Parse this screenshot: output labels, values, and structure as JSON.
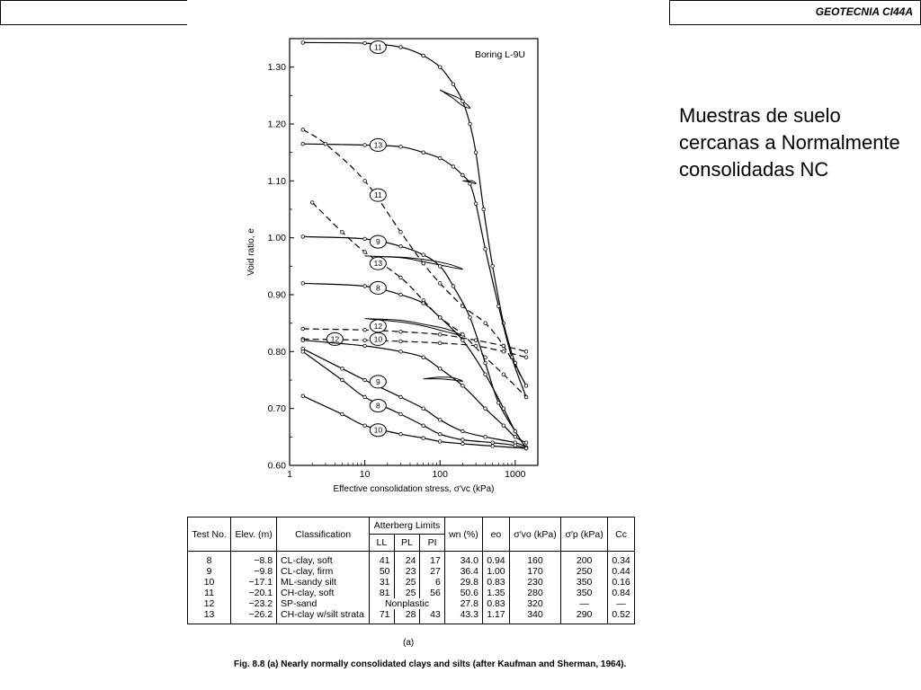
{
  "header": {
    "title": "GEOTECNIA CI44A"
  },
  "side_caption": "Muestras de suelo cercanas a Normalmente consolidadas NC",
  "chart_data": {
    "type": "line",
    "annotation": "Boring L-9U",
    "ylabel": "Void ratio, e",
    "xlabel": "Effective consolidation stress, σ′vc (kPa)",
    "x_scale": "log",
    "xlim": [
      1,
      2000
    ],
    "ylim": [
      0.6,
      1.35
    ],
    "x_ticks": [
      "1",
      "10",
      "100",
      "1000"
    ],
    "y_ticks": [
      "0.60",
      "0.70",
      "0.80",
      "0.90",
      "1.00",
      "1.10",
      "1.20",
      "1.30"
    ],
    "series": [
      {
        "label": "11",
        "style": "solid",
        "label_at": [
          15,
          1.335
        ],
        "points": [
          [
            1.5,
            1.343
          ],
          [
            10,
            1.342
          ],
          [
            30,
            1.335
          ],
          [
            60,
            1.32
          ],
          [
            100,
            1.3
          ],
          [
            150,
            1.27
          ],
          [
            200,
            1.24
          ],
          [
            250,
            1.2
          ],
          [
            300,
            1.15
          ],
          [
            380,
            1.05
          ],
          [
            500,
            0.95
          ],
          [
            700,
            0.85
          ],
          [
            1000,
            0.78
          ],
          [
            1400,
            0.74
          ]
        ]
      },
      {
        "label": "13",
        "style": "solid",
        "label_at": [
          15,
          1.163
        ],
        "points": [
          [
            1.5,
            1.165
          ],
          [
            10,
            1.163
          ],
          [
            30,
            1.16
          ],
          [
            60,
            1.15
          ],
          [
            100,
            1.14
          ],
          [
            150,
            1.125
          ],
          [
            200,
            1.11
          ],
          [
            250,
            1.095
          ],
          [
            300,
            1.06
          ],
          [
            400,
            0.98
          ],
          [
            600,
            0.88
          ],
          [
            900,
            0.79
          ],
          [
            1400,
            0.72
          ]
        ]
      },
      {
        "label": "11",
        "style": "dashed",
        "label_at": [
          15,
          1.075
        ],
        "points": [
          [
            1.5,
            1.19
          ],
          [
            3,
            1.165
          ],
          [
            10,
            1.1
          ],
          [
            30,
            1.01
          ],
          [
            60,
            0.955
          ],
          [
            100,
            0.92
          ],
          [
            200,
            0.88
          ],
          [
            400,
            0.85
          ],
          [
            700,
            0.81
          ],
          [
            1400,
            0.74
          ]
        ]
      },
      {
        "label": "13",
        "style": "dashed",
        "label_at": [
          15,
          0.955
        ],
        "points": [
          [
            2,
            1.062
          ],
          [
            5,
            1.01
          ],
          [
            10,
            0.975
          ],
          [
            30,
            0.93
          ],
          [
            60,
            0.89
          ],
          [
            100,
            0.86
          ],
          [
            200,
            0.83
          ],
          [
            400,
            0.79
          ],
          [
            700,
            0.76
          ],
          [
            1400,
            0.72
          ]
        ]
      },
      {
        "label": "9",
        "style": "solid",
        "label_at": [
          15,
          0.993
        ],
        "points": [
          [
            1.5,
            1.002
          ],
          [
            10,
            0.998
          ],
          [
            30,
            0.985
          ],
          [
            60,
            0.97
          ],
          [
            100,
            0.95
          ],
          [
            150,
            0.915
          ],
          [
            250,
            0.86
          ],
          [
            400,
            0.78
          ],
          [
            600,
            0.71
          ],
          [
            1000,
            0.66
          ],
          [
            1400,
            0.63
          ]
        ]
      },
      {
        "label": "8",
        "style": "solid",
        "label_at": [
          15,
          0.912
        ],
        "points": [
          [
            1.5,
            0.92
          ],
          [
            10,
            0.915
          ],
          [
            30,
            0.9
          ],
          [
            60,
            0.885
          ],
          [
            100,
            0.86
          ],
          [
            200,
            0.82
          ],
          [
            400,
            0.76
          ],
          [
            700,
            0.7
          ],
          [
            1000,
            0.66
          ],
          [
            1400,
            0.63
          ]
        ]
      },
      {
        "label": "12",
        "style": "dashed",
        "label_at": [
          15,
          0.845
        ],
        "points": [
          [
            1.5,
            0.84
          ],
          [
            10,
            0.838
          ],
          [
            30,
            0.835
          ],
          [
            100,
            0.83
          ],
          [
            300,
            0.82
          ],
          [
            700,
            0.81
          ],
          [
            1400,
            0.8
          ]
        ]
      },
      {
        "label": "12",
        "style": "dashed",
        "label_at": [
          4,
          0.822
        ],
        "points": [
          [
            1.5,
            0.822
          ],
          [
            10,
            0.82
          ],
          [
            30,
            0.818
          ],
          [
            100,
            0.815
          ],
          [
            300,
            0.81
          ],
          [
            700,
            0.8
          ],
          [
            1400,
            0.79
          ]
        ]
      },
      {
        "label": "10",
        "style": "solid",
        "label_at": [
          15,
          0.822
        ],
        "points": [
          [
            1.5,
            0.82
          ],
          [
            10,
            0.81
          ],
          [
            30,
            0.8
          ],
          [
            60,
            0.79
          ],
          [
            100,
            0.77
          ],
          [
            200,
            0.74
          ],
          [
            400,
            0.7
          ],
          [
            700,
            0.67
          ],
          [
            1000,
            0.65
          ],
          [
            1400,
            0.64
          ]
        ]
      },
      {
        "label": "9",
        "style": "solid",
        "label_at": [
          15,
          0.747
        ],
        "points": [
          [
            1.5,
            0.805
          ],
          [
            5,
            0.77
          ],
          [
            10,
            0.75
          ],
          [
            30,
            0.72
          ],
          [
            60,
            0.7
          ],
          [
            100,
            0.68
          ],
          [
            200,
            0.66
          ],
          [
            400,
            0.65
          ],
          [
            1000,
            0.64
          ],
          [
            1400,
            0.632
          ]
        ]
      },
      {
        "label": "8",
        "style": "solid",
        "label_at": [
          15,
          0.705
        ],
        "points": [
          [
            1.5,
            0.8
          ],
          [
            5,
            0.75
          ],
          [
            10,
            0.72
          ],
          [
            30,
            0.69
          ],
          [
            60,
            0.67
          ],
          [
            100,
            0.655
          ],
          [
            200,
            0.645
          ],
          [
            500,
            0.64
          ],
          [
            1000,
            0.635
          ],
          [
            1400,
            0.63
          ]
        ]
      },
      {
        "label": "10",
        "style": "solid",
        "label_at": [
          15,
          0.662
        ],
        "points": [
          [
            1.5,
            0.722
          ],
          [
            5,
            0.69
          ],
          [
            10,
            0.67
          ],
          [
            30,
            0.655
          ],
          [
            60,
            0.648
          ],
          [
            100,
            0.642
          ],
          [
            200,
            0.638
          ],
          [
            500,
            0.634
          ],
          [
            1400,
            0.63
          ]
        ]
      }
    ],
    "loops": [
      {
        "points": [
          [
            100,
            1.26
          ],
          [
            150,
            1.245
          ],
          [
            200,
            1.232
          ],
          [
            250,
            1.228
          ],
          [
            220,
            1.236
          ],
          [
            180,
            1.245
          ],
          [
            120,
            1.255
          ],
          [
            100,
            1.26
          ]
        ]
      },
      {
        "points": [
          [
            200,
            1.1
          ],
          [
            250,
            1.098
          ],
          [
            300,
            1.095
          ],
          [
            270,
            1.1
          ],
          [
            200,
            1.1
          ]
        ]
      },
      {
        "points": [
          [
            10,
            0.968
          ],
          [
            30,
            0.965
          ],
          [
            60,
            0.958
          ],
          [
            120,
            0.95
          ],
          [
            200,
            0.945
          ],
          [
            120,
            0.955
          ],
          [
            60,
            0.962
          ],
          [
            30,
            0.966
          ],
          [
            10,
            0.968
          ]
        ]
      },
      {
        "points": [
          [
            10,
            0.858
          ],
          [
            30,
            0.852
          ],
          [
            60,
            0.845
          ],
          [
            120,
            0.835
          ],
          [
            200,
            0.828
          ],
          [
            120,
            0.84
          ],
          [
            60,
            0.848
          ],
          [
            30,
            0.855
          ],
          [
            10,
            0.858
          ]
        ]
      },
      {
        "points": [
          [
            60,
            0.752
          ],
          [
            100,
            0.752
          ],
          [
            150,
            0.75
          ],
          [
            200,
            0.748
          ],
          [
            150,
            0.754
          ],
          [
            100,
            0.755
          ],
          [
            60,
            0.752
          ]
        ]
      }
    ]
  },
  "table": {
    "headers": {
      "test": "Test No.",
      "elev": "Elev. (m)",
      "classification": "Classification",
      "atterberg": "Atterberg Limits",
      "ll": "LL",
      "pl": "PL",
      "pi": "PI",
      "wn": "wn (%)",
      "eo": "eo",
      "svo": "σ′vo (kPa)",
      "sp": "σ′p (kPa)",
      "cc": "Cc"
    },
    "rows": [
      {
        "test": "8",
        "elev": "−8.8",
        "cls": "CL-clay, soft",
        "ll": "41",
        "pl": "24",
        "pi": "17",
        "wn": "34.0",
        "eo": "0.94",
        "svo": "160",
        "sp": "200",
        "cc": "0.34"
      },
      {
        "test": "9",
        "elev": "−9.8",
        "cls": "CL-clay, firm",
        "ll": "50",
        "pl": "23",
        "pi": "27",
        "wn": "36.4",
        "eo": "1.00",
        "svo": "170",
        "sp": "250",
        "cc": "0.44"
      },
      {
        "test": "10",
        "elev": "−17.1",
        "cls": "ML-sandy silt",
        "ll": "31",
        "pl": "25",
        "pi": "6",
        "wn": "29.8",
        "eo": "0.83",
        "svo": "230",
        "sp": "350",
        "cc": "0.16"
      },
      {
        "test": "11",
        "elev": "−20.1",
        "cls": "CH-clay, soft",
        "ll": "81",
        "pl": "25",
        "pi": "56",
        "wn": "50.6",
        "eo": "1.35",
        "svo": "280",
        "sp": "350",
        "cc": "0.84"
      },
      {
        "test": "12",
        "elev": "−23.2",
        "cls": "SP-sand",
        "nonplastic": "Nonplastic",
        "wn": "27.8",
        "eo": "0.83",
        "svo": "320",
        "sp": "—",
        "cc": "—"
      },
      {
        "test": "13",
        "elev": "−26.2",
        "cls": "CH-clay w/silt strata",
        "ll": "71",
        "pl": "28",
        "pi": "43",
        "wn": "43.3",
        "eo": "1.17",
        "svo": "340",
        "sp": "290",
        "cc": "0.52"
      }
    ],
    "label": "(a)"
  },
  "figure_caption": "Fig. 8.8 (a)   Nearly normally consolidated clays and silts (after Kaufman and Sherman, 1964)."
}
